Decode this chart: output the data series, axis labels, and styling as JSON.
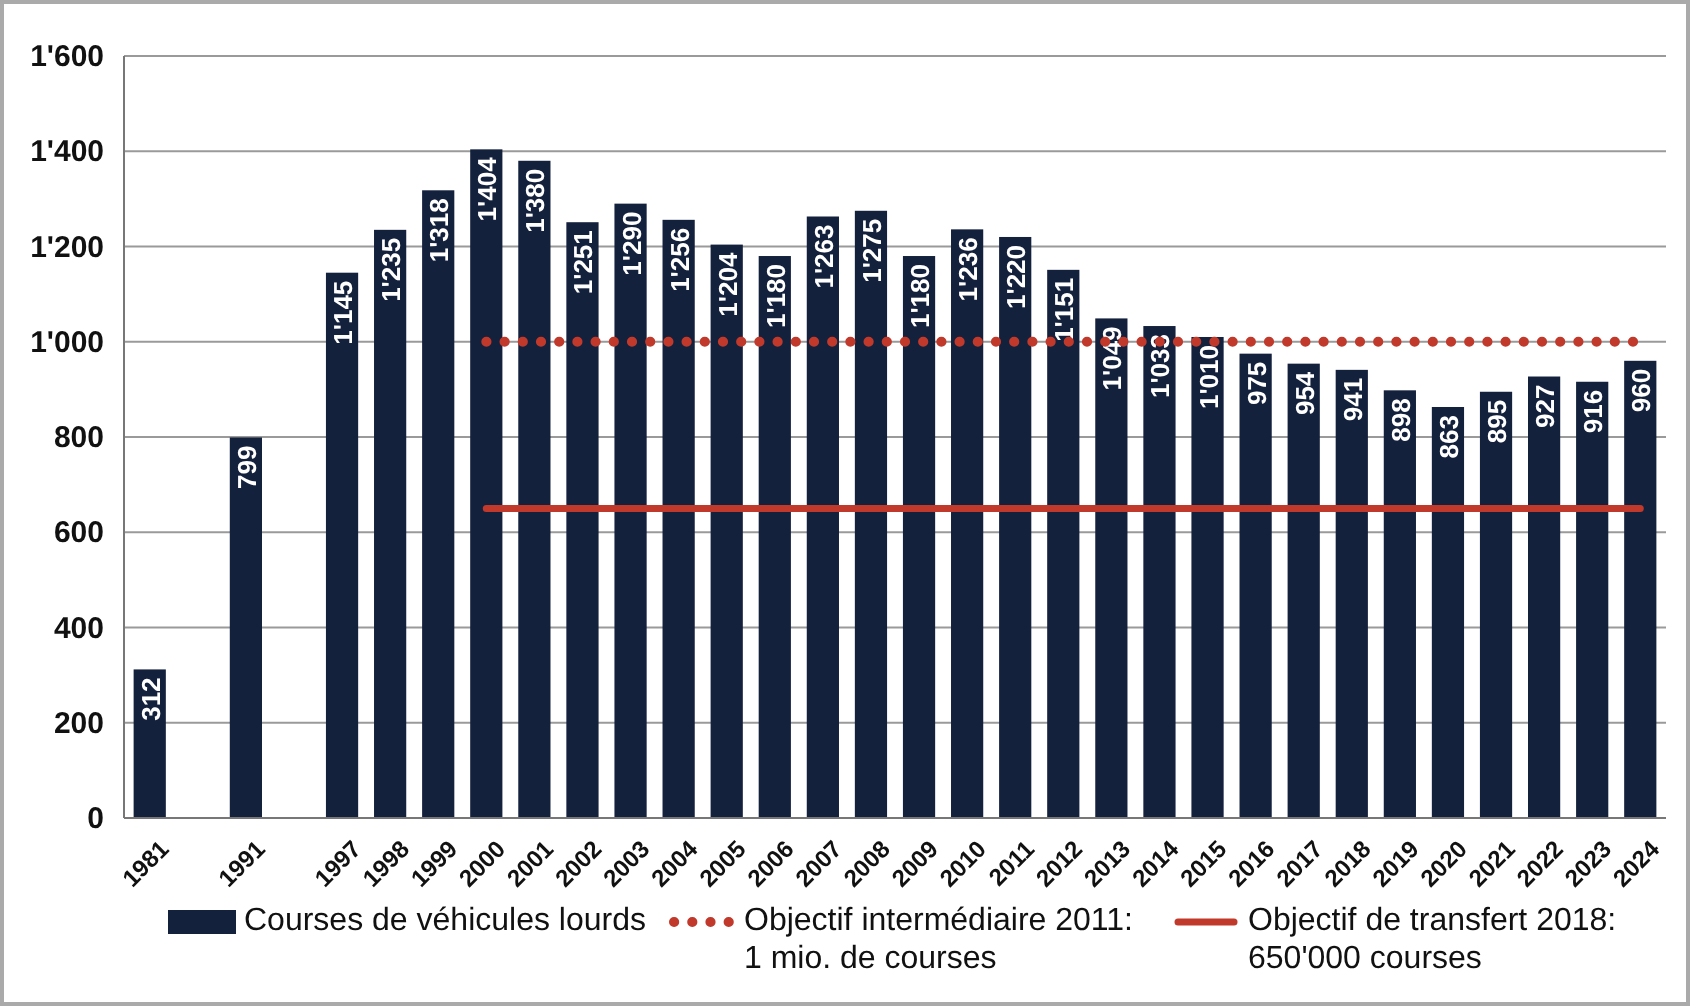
{
  "chart_data": {
    "type": "bar",
    "categories": [
      "1981",
      null,
      "1991",
      null,
      "1997",
      "1998",
      "1999",
      "2000",
      "2001",
      "2002",
      "2003",
      "2004",
      "2005",
      "2006",
      "2007",
      "2008",
      "2009",
      "2010",
      "2011",
      "2012",
      "2013",
      "2014",
      "2015",
      "2016",
      "2017",
      "2018",
      "2019",
      "2020",
      "2021",
      "2022",
      "2023",
      "2024"
    ],
    "series": [
      {
        "name": "Courses de véhicules lourds",
        "color": "#14213d",
        "values": [
          312,
          null,
          799,
          null,
          1145,
          1235,
          1318,
          1404,
          1380,
          1251,
          1290,
          1256,
          1204,
          1180,
          1263,
          1275,
          1180,
          1236,
          1220,
          1151,
          1049,
          1033,
          1010,
          975,
          954,
          941,
          898,
          863,
          895,
          927,
          916,
          960
        ],
        "value_labels": [
          "312",
          null,
          "799",
          null,
          "1'145",
          "1'235",
          "1'318",
          "1'404",
          "1'380",
          "1'251",
          "1'290",
          "1'256",
          "1'204",
          "1'180",
          "1'263",
          "1'275",
          "1'180",
          "1'236",
          "1'220",
          "1'151",
          "1'049",
          "1'033",
          "1'010",
          "975",
          "954",
          "941",
          "898",
          "863",
          "895",
          "927",
          "916",
          "960"
        ]
      },
      {
        "name": "Objectif intermédiaire 2011:\n1 mio. de courses",
        "type": "line",
        "color": "#c0392b",
        "line_style": "dotted",
        "values": [
          null,
          null,
          null,
          null,
          null,
          null,
          null,
          1000,
          1000,
          1000,
          1000,
          1000,
          1000,
          1000,
          1000,
          1000,
          1000,
          1000,
          1000,
          1000,
          1000,
          1000,
          1000,
          1000,
          1000,
          1000,
          1000,
          1000,
          1000,
          1000,
          1000,
          1000
        ]
      },
      {
        "name": "Objectif de transfert 2018:\n650'000 courses",
        "type": "line",
        "color": "#c0392b",
        "line_style": "solid",
        "values": [
          null,
          null,
          null,
          null,
          null,
          null,
          null,
          650,
          650,
          650,
          650,
          650,
          650,
          650,
          650,
          650,
          650,
          650,
          650,
          650,
          650,
          650,
          650,
          650,
          650,
          650,
          650,
          650,
          650,
          650,
          650,
          650
        ]
      }
    ],
    "ylim": [
      0,
      1600
    ],
    "yticks": [
      0,
      200,
      400,
      600,
      800,
      {
        "value": 1000,
        "label": "1'000"
      },
      {
        "value": 1200,
        "label": "1'200"
      },
      {
        "value": 1400,
        "label": "1'400"
      },
      {
        "value": 1600,
        "label": "1'600"
      }
    ],
    "grid": "y",
    "legend": "bottom"
  }
}
